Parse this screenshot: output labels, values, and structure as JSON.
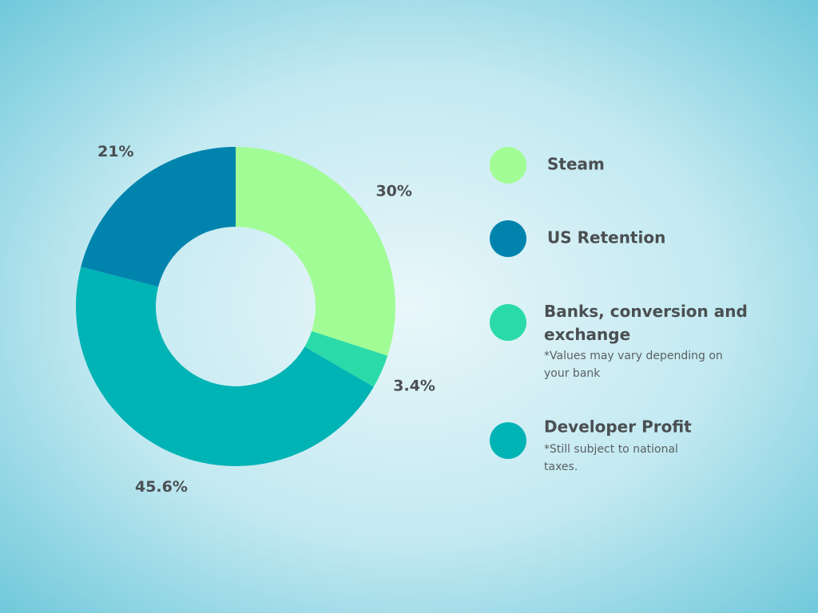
{
  "chart_data": {
    "type": "donut",
    "categories": [
      "Steam",
      "Banks, conversion and exchange",
      "Developer Profit",
      "US Retention"
    ],
    "values": [
      30,
      3.4,
      45.6,
      21
    ],
    "value_labels": [
      "30%",
      "3.4%",
      "45.6%",
      "21%"
    ],
    "colors": [
      "#a1fc95",
      "#2bdaa9",
      "#00b3b5",
      "#0083ad"
    ],
    "notes": [
      null,
      "*Values may vary depending on your bank",
      "*Still subject to national taxes.",
      null
    ]
  }
}
